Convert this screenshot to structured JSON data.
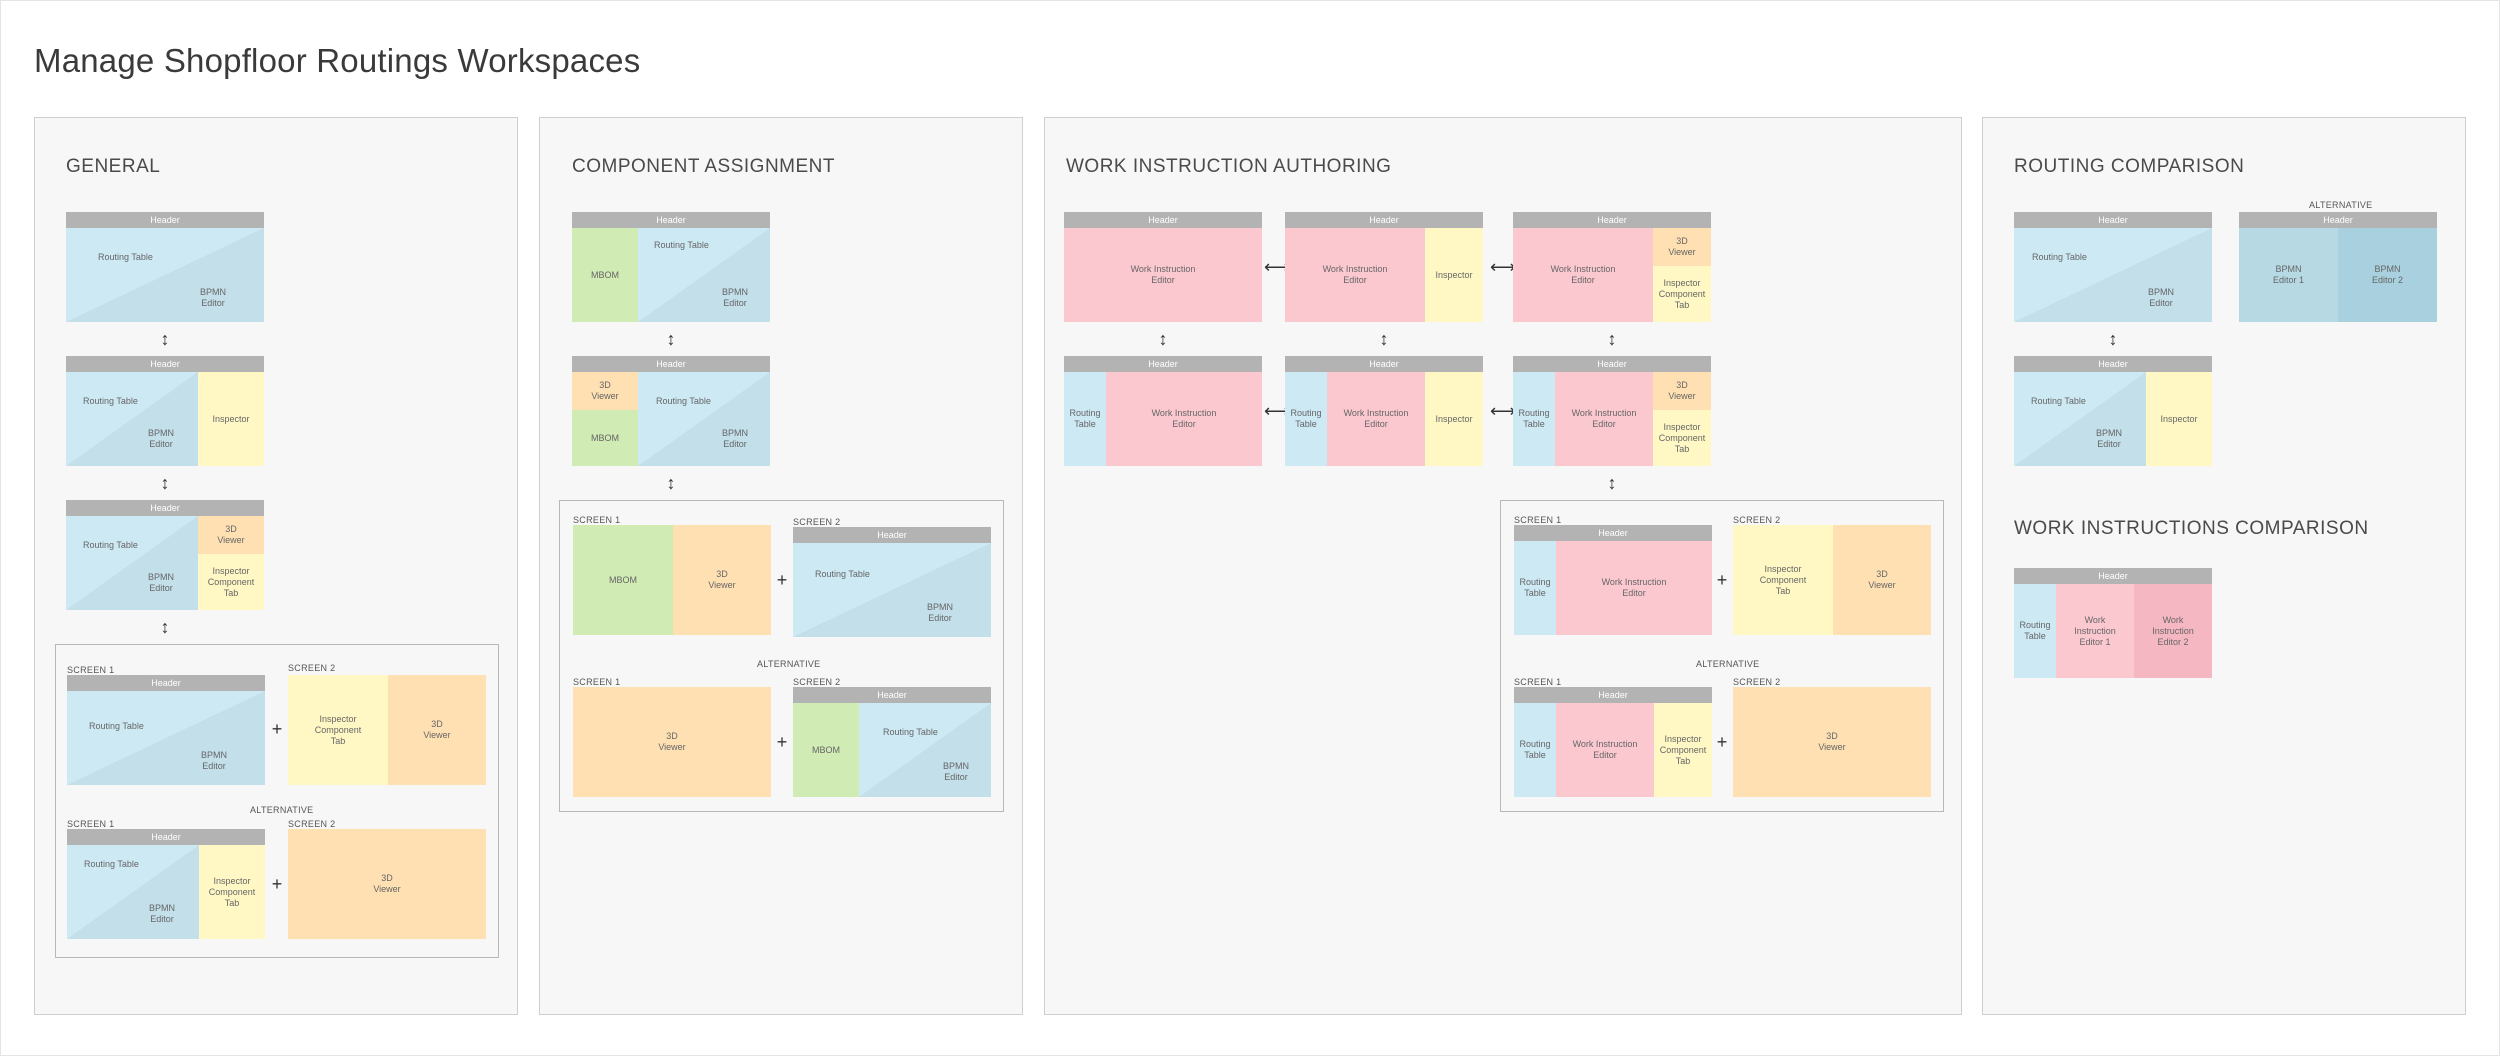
{
  "title": "Manage Shopfloor Routings Workspaces",
  "panels": {
    "general": "GENERAL",
    "component": "COMPONENT ASSIGNMENT",
    "authoring": "WORK INSTRUCTION AUTHORING",
    "routing_comparison": "ROUTING COMPARISON",
    "wi_comparison": "WORK INSTRUCTIONS COMPARISON"
  },
  "labels": {
    "header": "Header",
    "screen1": "SCREEN 1",
    "screen2": "SCREEN 2",
    "alternative": "ALTERNATIVE",
    "routing_table": "Routing Table",
    "routing_table_short": "Routing\nTable",
    "bpmn_editor": "BPMN\nEditor",
    "inspector": "Inspector",
    "viewer_3d": "3D\nViewer",
    "inspector_component_tab": "Inspector\nComponent\nTab",
    "mbom": "MBOM",
    "work_instruction_editor": "Work Instruction\nEditor",
    "bpmn_editor_1": "BPMN\nEditor 1",
    "bpmn_editor_2": "BPMN\nEditor 2",
    "wi_editor_1": "Work\nInstruction\nEditor 1",
    "wi_editor_2": "Work\nInstruction\nEditor 2"
  },
  "symbols": {
    "vertical_arrow": "↕",
    "horizontal_arrow": "⟷",
    "plus": "+"
  }
}
